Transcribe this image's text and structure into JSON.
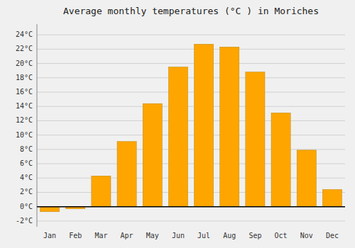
{
  "chart_data": {
    "type": "bar",
    "title": "Average monthly temperatures (°C ) in Moriches",
    "categories": [
      "Jan",
      "Feb",
      "Mar",
      "Apr",
      "May",
      "Jun",
      "Jul",
      "Aug",
      "Sep",
      "Oct",
      "Nov",
      "Dec"
    ],
    "values": [
      -0.7,
      -0.3,
      4.3,
      9.1,
      14.4,
      19.5,
      22.7,
      22.3,
      18.8,
      13.1,
      7.9,
      2.4
    ],
    "color": "#FFA500",
    "ylim": [
      -2.8,
      25.5
    ],
    "yticks": [
      {
        "value": -2,
        "label": "-2°C"
      },
      {
        "value": 0,
        "label": "0°C"
      },
      {
        "value": 2,
        "label": "2°C"
      },
      {
        "value": 4,
        "label": "4°C"
      },
      {
        "value": 6,
        "label": "6°C"
      },
      {
        "value": 8,
        "label": "8°C"
      },
      {
        "value": 10,
        "label": "10°C"
      },
      {
        "value": 12,
        "label": "12°C"
      },
      {
        "value": 14,
        "label": "14°C"
      },
      {
        "value": 16,
        "label": "16°C"
      },
      {
        "value": 18,
        "label": "18°C"
      },
      {
        "value": 20,
        "label": "20°C"
      },
      {
        "value": 22,
        "label": "22°C"
      },
      {
        "value": 24,
        "label": "24°C"
      }
    ],
    "grid": true
  }
}
